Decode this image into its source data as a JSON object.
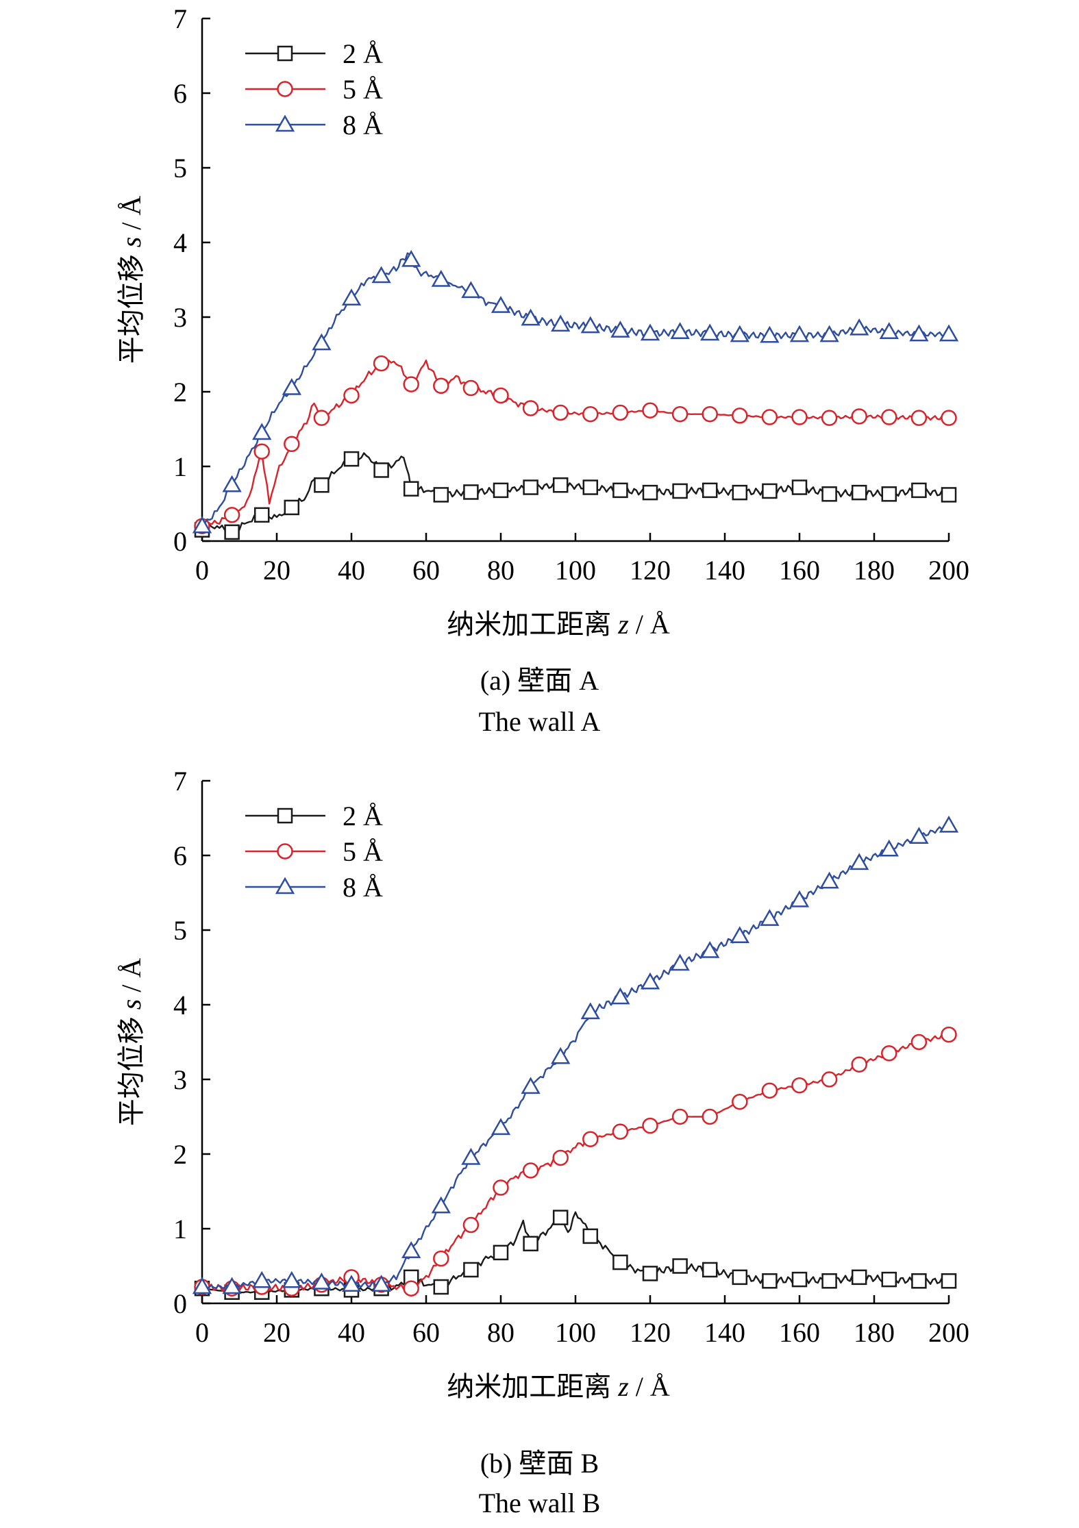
{
  "chart_data": [
    {
      "type": "line",
      "panel": "a",
      "caption_zh": "(a) 壁面 A",
      "caption_en": "The wall A",
      "xlabel_text": "纳米加工距离",
      "xlabel_var": "z",
      "xlabel_unit": " / Å",
      "ylabel_text": "平均位移",
      "ylabel_var": "s",
      "ylabel_unit": " / Å",
      "xlim": [
        0,
        200
      ],
      "ylim": [
        0,
        7
      ],
      "x_ticks": [
        "0",
        "20",
        "40",
        "60",
        "80",
        "100",
        "120",
        "140",
        "160",
        "180",
        "200"
      ],
      "y_ticks": [
        "0",
        "1",
        "2",
        "3",
        "4",
        "5",
        "6",
        "7"
      ],
      "grid": false,
      "legend_position": "top-left",
      "series": [
        {
          "name": "2 Å",
          "color": "#1a1a1a",
          "marker": "square",
          "x": [
            0,
            4,
            8,
            12,
            16,
            20,
            24,
            28,
            30,
            32,
            36,
            40,
            44,
            48,
            52,
            54,
            56,
            60,
            64,
            70,
            80,
            88,
            96,
            104,
            112,
            120,
            128,
            136,
            144,
            152,
            160,
            168,
            176,
            184,
            192,
            200
          ],
          "y": [
            0.15,
            0.2,
            0.12,
            0.25,
            0.35,
            0.32,
            0.45,
            0.6,
            0.85,
            0.75,
            0.95,
            1.1,
            1.15,
            0.95,
            1.05,
            1.15,
            0.7,
            0.68,
            0.62,
            0.65,
            0.68,
            0.72,
            0.75,
            0.72,
            0.68,
            0.65,
            0.67,
            0.68,
            0.65,
            0.67,
            0.72,
            0.63,
            0.65,
            0.63,
            0.68,
            0.62
          ]
        },
        {
          "name": "5 Å",
          "color": "#d9232a",
          "marker": "circle",
          "x": [
            0,
            4,
            8,
            12,
            16,
            18,
            20,
            24,
            28,
            30,
            32,
            36,
            40,
            44,
            48,
            52,
            56,
            60,
            64,
            68,
            72,
            76,
            80,
            84,
            88,
            96,
            104,
            112,
            120,
            128,
            136,
            144,
            152,
            160,
            168,
            176,
            184,
            192,
            200
          ],
          "y": [
            0.2,
            0.25,
            0.35,
            0.5,
            1.2,
            0.5,
            0.9,
            1.3,
            1.6,
            1.85,
            1.65,
            1.8,
            1.95,
            2.2,
            2.38,
            2.4,
            2.1,
            2.4,
            2.08,
            2.2,
            2.05,
            2.0,
            1.95,
            1.85,
            1.78,
            1.72,
            1.7,
            1.72,
            1.75,
            1.7,
            1.7,
            1.68,
            1.66,
            1.66,
            1.65,
            1.67,
            1.66,
            1.65,
            1.65
          ]
        },
        {
          "name": "8 Å",
          "color": "#2e4da0",
          "marker": "triangle",
          "x": [
            0,
            4,
            8,
            12,
            16,
            20,
            24,
            28,
            32,
            36,
            40,
            44,
            48,
            52,
            55,
            58,
            62,
            66,
            72,
            76,
            80,
            88,
            96,
            104,
            112,
            120,
            128,
            136,
            144,
            152,
            160,
            168,
            176,
            184,
            192,
            200
          ],
          "y": [
            0.2,
            0.4,
            0.75,
            1.1,
            1.45,
            1.8,
            2.05,
            2.35,
            2.65,
            3.0,
            3.25,
            3.5,
            3.55,
            3.65,
            3.85,
            3.6,
            3.55,
            3.45,
            3.35,
            3.2,
            3.15,
            2.98,
            2.9,
            2.88,
            2.82,
            2.78,
            2.8,
            2.78,
            2.76,
            2.75,
            2.76,
            2.76,
            2.85,
            2.8,
            2.77,
            2.77
          ]
        }
      ]
    },
    {
      "type": "line",
      "panel": "b",
      "caption_zh": "(b) 壁面 B",
      "caption_en": "The wall B",
      "xlabel_text": "纳米加工距离",
      "xlabel_var": "z",
      "xlabel_unit": " / Å",
      "ylabel_text": "平均位移",
      "ylabel_var": "s",
      "ylabel_unit": " / Å",
      "xlim": [
        0,
        200
      ],
      "ylim": [
        0,
        7
      ],
      "x_ticks": [
        "0",
        "20",
        "40",
        "60",
        "80",
        "100",
        "120",
        "140",
        "160",
        "180",
        "200"
      ],
      "y_ticks": [
        "0",
        "1",
        "2",
        "3",
        "4",
        "5",
        "6",
        "7"
      ],
      "grid": false,
      "legend_position": "top-left",
      "series": [
        {
          "name": "2 Å",
          "color": "#1a1a1a",
          "marker": "square",
          "x": [
            0,
            8,
            16,
            24,
            32,
            40,
            48,
            52,
            56,
            60,
            64,
            68,
            72,
            76,
            80,
            84,
            86,
            88,
            92,
            96,
            98,
            100,
            102,
            104,
            108,
            112,
            116,
            120,
            128,
            136,
            144,
            152,
            160,
            168,
            176,
            184,
            192,
            200
          ],
          "y": [
            0.2,
            0.15,
            0.15,
            0.18,
            0.2,
            0.18,
            0.2,
            0.22,
            0.35,
            0.25,
            0.22,
            0.35,
            0.45,
            0.6,
            0.68,
            0.85,
            1.1,
            0.8,
            0.95,
            1.15,
            0.95,
            1.2,
            1.1,
            0.9,
            0.75,
            0.55,
            0.45,
            0.4,
            0.5,
            0.45,
            0.35,
            0.3,
            0.32,
            0.3,
            0.35,
            0.32,
            0.3,
            0.3
          ]
        },
        {
          "name": "5 Å",
          "color": "#d9232a",
          "marker": "circle",
          "x": [
            0,
            8,
            16,
            24,
            32,
            40,
            48,
            52,
            56,
            60,
            64,
            68,
            72,
            76,
            80,
            84,
            88,
            92,
            96,
            100,
            104,
            112,
            120,
            128,
            136,
            144,
            152,
            160,
            168,
            176,
            184,
            192,
            200
          ],
          "y": [
            0.22,
            0.2,
            0.22,
            0.2,
            0.25,
            0.35,
            0.25,
            0.22,
            0.2,
            0.35,
            0.6,
            0.85,
            1.05,
            1.3,
            1.55,
            1.7,
            1.78,
            1.85,
            1.95,
            2.1,
            2.2,
            2.3,
            2.38,
            2.5,
            2.5,
            2.7,
            2.85,
            2.92,
            3.0,
            3.2,
            3.35,
            3.5,
            3.6
          ]
        },
        {
          "name": "8 Å",
          "color": "#2e4da0",
          "marker": "triangle",
          "x": [
            0,
            8,
            16,
            24,
            32,
            40,
            48,
            52,
            56,
            60,
            64,
            68,
            72,
            76,
            80,
            84,
            88,
            92,
            96,
            100,
            104,
            112,
            120,
            128,
            136,
            144,
            152,
            160,
            168,
            176,
            184,
            192,
            200
          ],
          "y": [
            0.22,
            0.22,
            0.3,
            0.3,
            0.28,
            0.25,
            0.25,
            0.35,
            0.7,
            1.0,
            1.3,
            1.65,
            1.95,
            2.15,
            2.35,
            2.6,
            2.9,
            3.1,
            3.3,
            3.55,
            3.9,
            4.1,
            4.3,
            4.55,
            4.72,
            4.92,
            5.15,
            5.4,
            5.65,
            5.9,
            6.08,
            6.25,
            6.4
          ]
        }
      ]
    }
  ]
}
